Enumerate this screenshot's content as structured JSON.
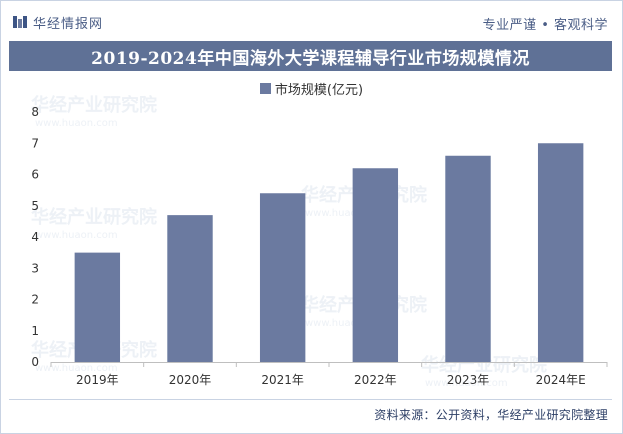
{
  "header": {
    "brand": "华经情报网",
    "slogan": "专业严谨 • 客观科学",
    "logo_icon": "bar-chart-logo-icon"
  },
  "watermark": {
    "text": "华经产业研究院",
    "url_text": "www.huaon.com"
  },
  "source_note": "资料来源：公开资料，华经产业研究院整理",
  "chart_data": {
    "type": "bar",
    "title": "2019-2024年中国海外大学课程辅导行业市场规模情况",
    "categories": [
      "2019年",
      "2020年",
      "2021年",
      "2022年",
      "2023年",
      "2024年E"
    ],
    "series": [
      {
        "name": "市场规模(亿元)",
        "values": [
          3.5,
          4.7,
          5.4,
          6.2,
          6.6,
          7.0
        ],
        "color": "#6b7aa0"
      }
    ],
    "ylim": [
      0,
      8
    ],
    "yticks": [
      0,
      1,
      2,
      3,
      4,
      5,
      6,
      7,
      8
    ],
    "legend_position": "top-center",
    "grid": false
  }
}
